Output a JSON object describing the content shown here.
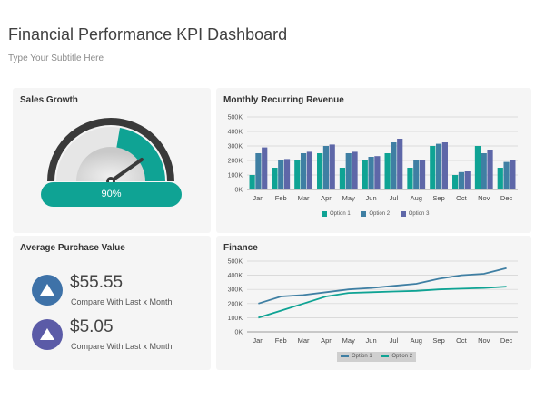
{
  "header": {
    "title": "Financial Performance KPI Dashboard",
    "subtitle": "Type Your Subtitle Here"
  },
  "colors": {
    "teal": "#0fa394",
    "steel": "#3f7fa3",
    "slate": "#5e67a8",
    "blue_icon": "#3e72a8",
    "purple_icon": "#5b5ba7",
    "gauge_dark": "#3a3a3a",
    "panel_bg": "#f5f5f5"
  },
  "sales_growth": {
    "title": "Sales Growth",
    "value_label": "90%",
    "value": 0.9
  },
  "avg_purchase": {
    "title": "Average Purchase Value",
    "items": [
      {
        "value": "$55.55",
        "caption": "Compare With Last x Month",
        "icon": "triangle-up-icon",
        "color": "#3e72a8"
      },
      {
        "value": "$5.05",
        "caption": "Compare With Last x Month",
        "icon": "triangle-up-icon",
        "color": "#5b5ba7"
      }
    ]
  },
  "chart_data": [
    {
      "type": "bar",
      "title": "Monthly Recurring Revenue",
      "categories": [
        "Jan",
        "Feb",
        "Mar",
        "Apr",
        "May",
        "Jun",
        "Jul",
        "Aug",
        "Sep",
        "Oct",
        "Nov",
        "Dec"
      ],
      "ytick_labels": [
        "0K",
        "100K",
        "200K",
        "300K",
        "400K",
        "500K"
      ],
      "ylim": [
        0,
        500000
      ],
      "grid": true,
      "legend": "bottom",
      "series": [
        {
          "name": "Option 1",
          "color": "#0fa394",
          "values": [
            100000,
            150000,
            200000,
            250000,
            150000,
            200000,
            250000,
            150000,
            300000,
            100000,
            300000,
            150000
          ]
        },
        {
          "name": "Option 2",
          "color": "#3f7fa3",
          "values": [
            250000,
            200000,
            250000,
            300000,
            250000,
            225000,
            325000,
            200000,
            315000,
            120000,
            250000,
            190000
          ]
        },
        {
          "name": "Option 3",
          "color": "#5e67a8",
          "values": [
            290000,
            210000,
            260000,
            310000,
            260000,
            230000,
            350000,
            205000,
            325000,
            125000,
            275000,
            200000
          ]
        }
      ]
    },
    {
      "type": "line",
      "title": "Finance",
      "categories": [
        "Jan",
        "Feb",
        "Mar",
        "Apr",
        "May",
        "Jun",
        "Jul",
        "Aug",
        "Sep",
        "Oct",
        "Nov",
        "Dec"
      ],
      "ytick_labels": [
        "0K",
        "100K",
        "200K",
        "300K",
        "400K",
        "500K"
      ],
      "ylim": [
        0,
        500000
      ],
      "grid": true,
      "legend": "bottom",
      "series": [
        {
          "name": "Option 1",
          "color": "#3f7fa3",
          "values": [
            200000,
            250000,
            260000,
            280000,
            300000,
            310000,
            325000,
            340000,
            375000,
            400000,
            410000,
            450000
          ]
        },
        {
          "name": "Option 2",
          "color": "#0fa394",
          "values": [
            100000,
            150000,
            200000,
            250000,
            275000,
            280000,
            285000,
            290000,
            300000,
            305000,
            310000,
            320000
          ]
        }
      ]
    }
  ]
}
